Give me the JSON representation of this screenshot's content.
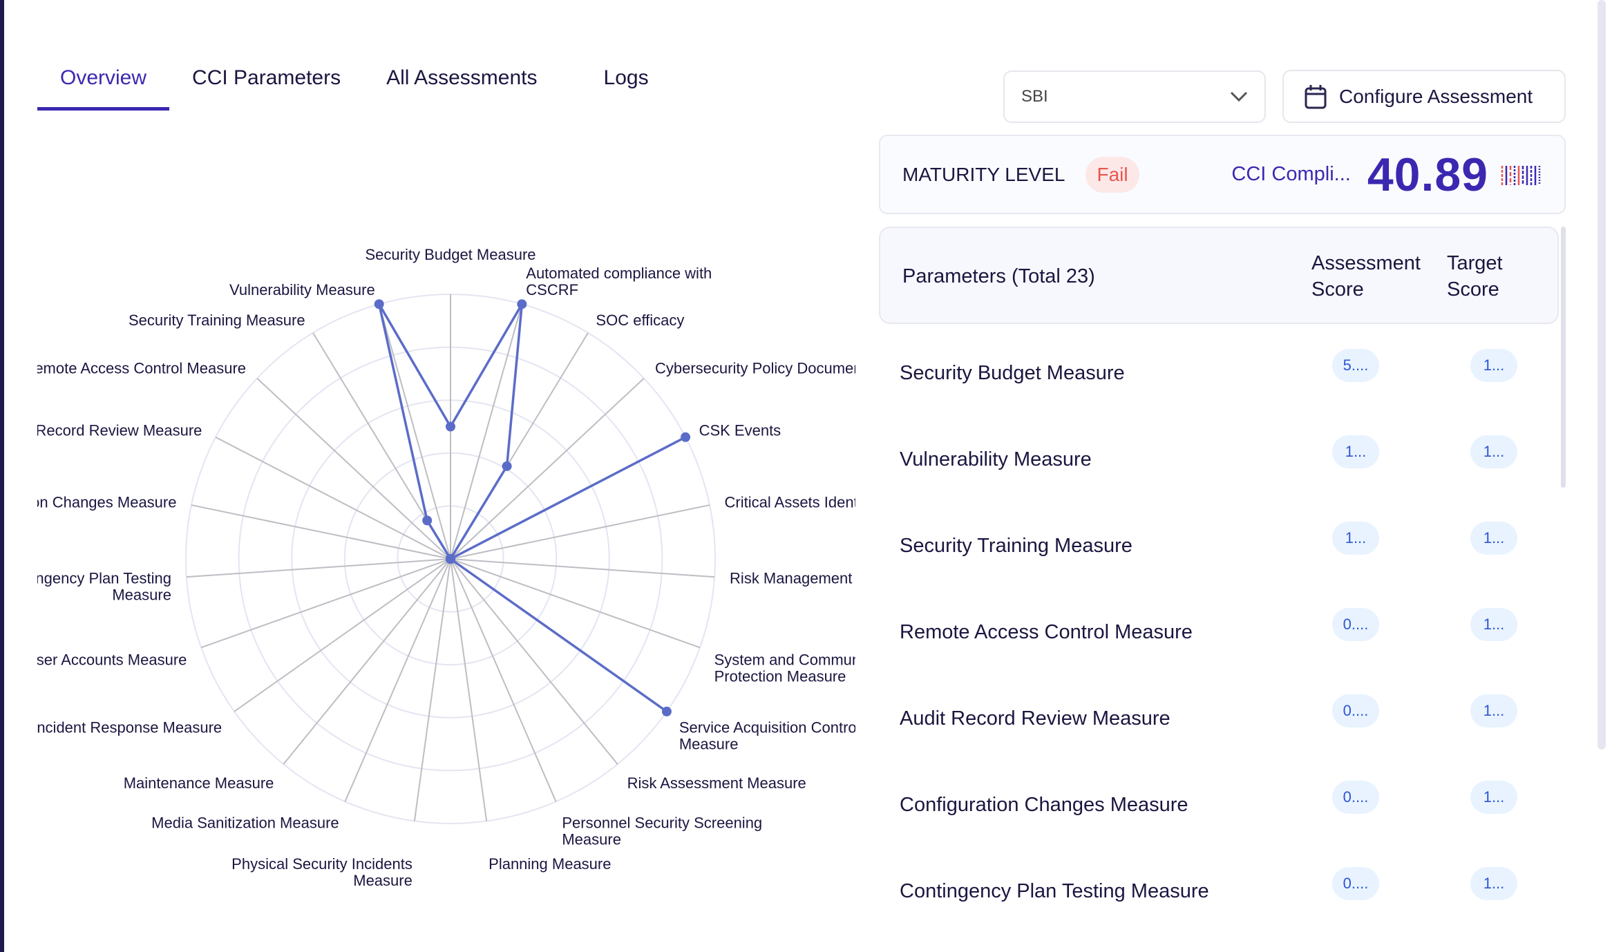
{
  "tabs": [
    {
      "label": "Overview",
      "active": true
    },
    {
      "label": "CCI Parameters"
    },
    {
      "label": "All Assessments"
    },
    {
      "label": "Logs"
    }
  ],
  "select": {
    "value": "SBI",
    "icon": "chevron-down-icon"
  },
  "configure": {
    "label": "Configure Assessment",
    "icon": "calendar-icon"
  },
  "maturity": {
    "label": "MATURITY LEVEL",
    "status": "Fail",
    "cci_label": "CCI Compli...",
    "cci_value": "40.89",
    "status_color": "#e8564f",
    "accent": "#3b28b0"
  },
  "params": {
    "title": "Parameters (Total 23)",
    "col_assessment_1": "Assessment",
    "col_assessment_2": "Score",
    "col_target_1": "Target",
    "col_target_2": "Score",
    "rows": [
      {
        "name": "Security Budget Measure",
        "assessment": "5....",
        "target": "1..."
      },
      {
        "name": "Vulnerability Measure",
        "assessment": "1...",
        "target": "1..."
      },
      {
        "name": "Security Training Measure",
        "assessment": "1...",
        "target": "1..."
      },
      {
        "name": "Remote Access Control Measure",
        "assessment": "0....",
        "target": "1..."
      },
      {
        "name": "Audit Record Review Measure",
        "assessment": "0....",
        "target": "1..."
      },
      {
        "name": "Configuration Changes Measure",
        "assessment": "0....",
        "target": "1..."
      },
      {
        "name": "Contingency Plan Testing Measure",
        "assessment": "0....",
        "target": "1..."
      }
    ]
  },
  "chart_data": {
    "type": "radar",
    "line_color": "#5b6cc8",
    "rmax": 10,
    "rings": 5,
    "categories": [
      "Security Budget Measure",
      "Automated compliance with\nCSCRF",
      "SOC efficacy",
      "Cybersecurity Policy Document",
      "CSK Events",
      "Critical Assets Identification",
      "Risk Management",
      "System and Communications\nProtection Measure",
      "Service Acquisition Control\nMeasure",
      "Risk Assessment Measure",
      "Personnel Security Screening\nMeasure",
      "Planning Measure",
      "Physical Security Incidents\nMeasure",
      "Media Sanitization Measure",
      "Maintenance Measure",
      "Incident Response Measure",
      "User Accounts Measure",
      "Contingency Plan Testing\nMeasure",
      "Configuration Changes Measure",
      "Audit Record Review Measure",
      "Remote Access Control Measure",
      "Security Training Measure",
      "Vulnerability Measure"
    ],
    "values": [
      5,
      10,
      4.1,
      0,
      10,
      0,
      0,
      0,
      10,
      0,
      0,
      0,
      0,
      0,
      0,
      0,
      0,
      0,
      0,
      0,
      0,
      1.7,
      10
    ]
  }
}
